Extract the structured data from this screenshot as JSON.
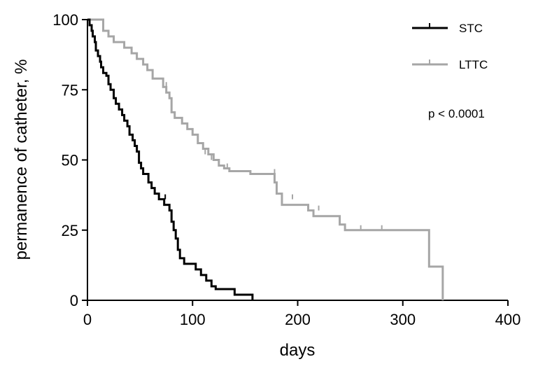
{
  "chart_data": {
    "type": "line",
    "subtype": "kaplan-meier-step",
    "xlabel": "days",
    "ylabel": "permanence of catheter, %",
    "xlim": [
      0,
      400
    ],
    "ylim": [
      0,
      100
    ],
    "x_ticks": [
      "0",
      "100",
      "200",
      "300",
      "400"
    ],
    "y_ticks": [
      "0",
      "25",
      "50",
      "75",
      "100"
    ],
    "x_tick_values": [
      0,
      100,
      200,
      300,
      400
    ],
    "y_tick_values": [
      0,
      25,
      50,
      75,
      100
    ],
    "grid": false,
    "legend_position": "top-right",
    "annotation": "p < 0.0001",
    "series": [
      {
        "name": "STC",
        "color": "#000000",
        "points": [
          [
            0,
            100
          ],
          [
            2,
            98
          ],
          [
            4,
            96
          ],
          [
            5,
            94
          ],
          [
            7,
            92
          ],
          [
            8,
            89
          ],
          [
            10,
            87
          ],
          [
            12,
            85
          ],
          [
            13,
            83
          ],
          [
            15,
            81
          ],
          [
            18,
            80
          ],
          [
            20,
            77
          ],
          [
            22,
            75
          ],
          [
            25,
            72
          ],
          [
            27,
            70
          ],
          [
            30,
            68
          ],
          [
            33,
            66
          ],
          [
            35,
            64
          ],
          [
            38,
            62
          ],
          [
            40,
            59
          ],
          [
            43,
            57
          ],
          [
            45,
            55
          ],
          [
            47,
            53
          ],
          [
            49,
            49
          ],
          [
            51,
            47
          ],
          [
            53,
            45
          ],
          [
            58,
            42
          ],
          [
            61,
            40
          ],
          [
            64,
            38
          ],
          [
            68,
            36
          ],
          [
            73,
            34
          ],
          [
            78,
            32
          ],
          [
            80,
            28
          ],
          [
            82,
            25
          ],
          [
            84,
            22
          ],
          [
            86,
            18
          ],
          [
            88,
            15
          ],
          [
            92,
            13
          ],
          [
            103,
            11
          ],
          [
            108,
            9
          ],
          [
            113,
            7
          ],
          [
            118,
            5
          ],
          [
            122,
            4
          ],
          [
            140,
            2
          ],
          [
            157,
            0
          ]
        ],
        "censored": [
          [
            74,
            36
          ]
        ]
      },
      {
        "name": "LTTC",
        "color": "#a6a6a6",
        "points": [
          [
            0,
            100
          ],
          [
            15,
            96
          ],
          [
            20,
            94
          ],
          [
            25,
            92
          ],
          [
            35,
            90
          ],
          [
            42,
            88
          ],
          [
            47,
            86
          ],
          [
            53,
            84
          ],
          [
            57,
            82
          ],
          [
            62,
            79
          ],
          [
            72,
            76
          ],
          [
            75,
            74
          ],
          [
            78,
            72
          ],
          [
            80,
            67
          ],
          [
            83,
            65
          ],
          [
            90,
            63
          ],
          [
            95,
            61
          ],
          [
            100,
            59
          ],
          [
            105,
            56
          ],
          [
            110,
            54
          ],
          [
            115,
            52
          ],
          [
            120,
            50
          ],
          [
            125,
            48
          ],
          [
            130,
            47
          ],
          [
            135,
            46
          ],
          [
            155,
            45
          ],
          [
            178,
            42
          ],
          [
            180,
            38
          ],
          [
            185,
            34
          ],
          [
            210,
            32
          ],
          [
            215,
            30
          ],
          [
            240,
            27
          ],
          [
            245,
            25
          ],
          [
            325,
            12
          ],
          [
            338,
            0
          ]
        ],
        "censored": [
          [
            75,
            76
          ],
          [
            83,
            65
          ],
          [
            112,
            52
          ],
          [
            118,
            50
          ],
          [
            133,
            47
          ],
          [
            178,
            45
          ],
          [
            195,
            36
          ],
          [
            220,
            32
          ],
          [
            260,
            25
          ],
          [
            280,
            25
          ]
        ]
      }
    ]
  }
}
